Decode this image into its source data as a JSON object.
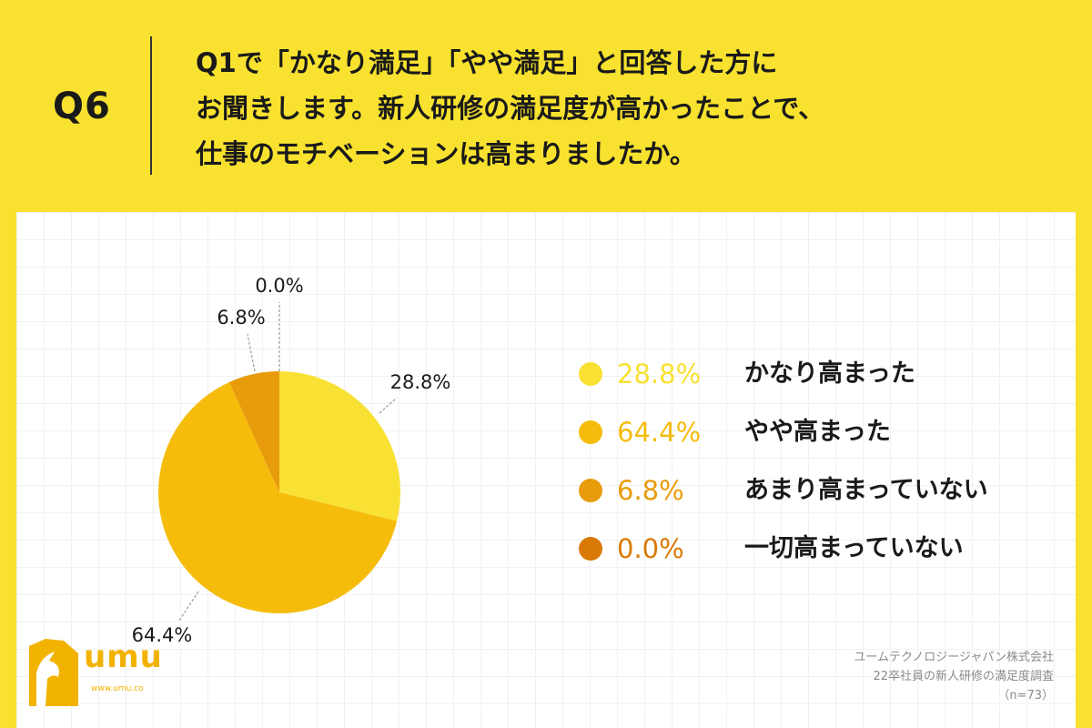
{
  "header": {
    "q_label": "Q6",
    "question_lines": [
      "Q1で「かなり満足」「やや満足」と回答した方に",
      "お聞きします。新人研修の満足度が高かったことで、",
      "仕事のモチベーションは高まりましたか。"
    ]
  },
  "chart_data": {
    "type": "pie",
    "categories": [
      "かなり高まった",
      "やや高まった",
      "あまり高まっていない",
      "一切高まっていない"
    ],
    "values": [
      28.8,
      64.4,
      6.8,
      0.0
    ],
    "value_labels": [
      "28.8%",
      "64.4%",
      "6.8%",
      "0.0%"
    ],
    "colors": [
      "#f8e132",
      "#f5bc0c",
      "#e89b0b",
      "#d97a06"
    ],
    "start_angle": "12 o'clock",
    "direction": "clockwise",
    "legend_placement": "right"
  },
  "legend": [
    {
      "pct": "28.8%",
      "label": "かなり高まった",
      "color": "#f8e132"
    },
    {
      "pct": "64.4%",
      "label": "やや高まった",
      "color": "#f5bc0c"
    },
    {
      "pct": "6.8%",
      "label": "あまり高まっていない",
      "color": "#e89b0b"
    },
    {
      "pct": "0.0%",
      "label": "一切高まっていない",
      "color": "#d97a06"
    }
  ],
  "logo": {
    "name": "umu",
    "url": "www.umu.co"
  },
  "source": {
    "lines": [
      "ユームテクノロジージャパン株式会社",
      "22卒社員の新人研修の満足度調査",
      "（n=73）"
    ]
  }
}
